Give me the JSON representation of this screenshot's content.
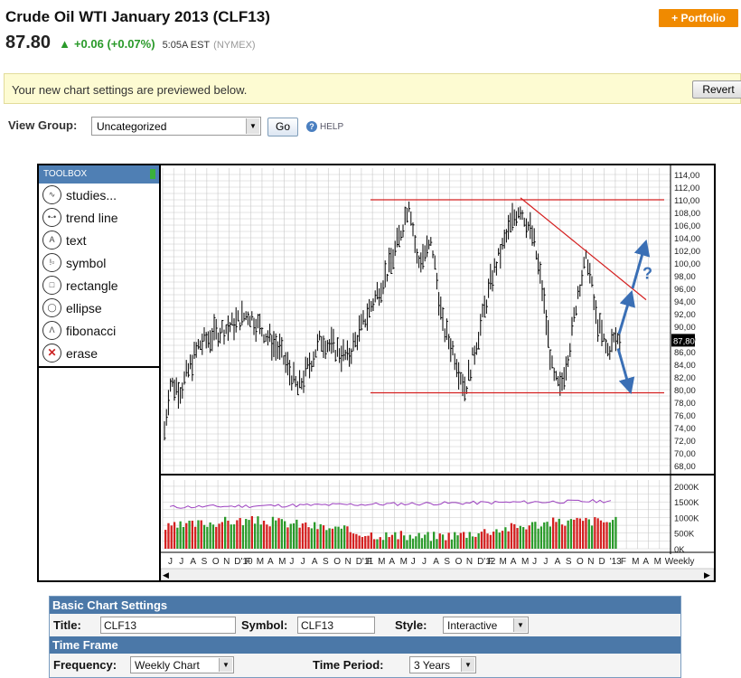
{
  "header": {
    "title": "Crude Oil WTI January 2013 (CLF13)",
    "portfolio_button": "+ Portfolio"
  },
  "quote": {
    "price": "87.80",
    "arrow_icon": "up-arrow-icon",
    "change": "+0.06 (+0.07%)",
    "time": "5:05A EST",
    "exchange": "(NYMEX)",
    "up_color": "#2a9a2a"
  },
  "notice": {
    "message": "Your new chart settings are previewed below.",
    "revert_label": "Revert"
  },
  "view_group": {
    "label": "View Group:",
    "selected": "Uncategorized",
    "go_label": "Go",
    "help_label": "HELP"
  },
  "toolbox": {
    "title": "TOOLBOX",
    "tools": [
      {
        "label": "studies...",
        "icon": "studies-icon"
      },
      {
        "label": "trend line",
        "icon": "trend-line-icon"
      },
      {
        "label": "text",
        "icon": "text-icon"
      },
      {
        "label": "symbol",
        "icon": "symbol-icon"
      },
      {
        "label": "rectangle",
        "icon": "rectangle-icon"
      },
      {
        "label": "ellipse",
        "icon": "ellipse-icon"
      },
      {
        "label": "fibonacci",
        "icon": "fibonacci-icon"
      },
      {
        "label": "erase",
        "icon": "erase-icon"
      }
    ]
  },
  "chart_data": {
    "type": "line",
    "symbol": "CLF13",
    "frequency": "Weekly",
    "price_ticks": [
      "114,00",
      "112,00",
      "110,00",
      "108,00",
      "106,00",
      "104,00",
      "102,00",
      "100,00",
      "98,00",
      "96,00",
      "94,00",
      "92,00",
      "90,00",
      "88,00",
      "86,00",
      "84,00",
      "82,00",
      "80,00",
      "78,00",
      "76,00",
      "74,00",
      "72,00",
      "70,00",
      "68,00"
    ],
    "ylim": [
      67,
      115
    ],
    "last_price_label": "87,80",
    "volume_ticks": [
      "2000K",
      "1500K",
      "1000K",
      "500K",
      "0K"
    ],
    "volume_ylim": [
      0,
      2200
    ],
    "x_labels": [
      "J",
      "J",
      "A",
      "S",
      "O",
      "N",
      "D'10",
      "F",
      "M",
      "A",
      "M",
      "J",
      "J",
      "A",
      "S",
      "O",
      "N",
      "D'11",
      "F",
      "M",
      "A",
      "M",
      "J",
      "J",
      "A",
      "S",
      "O",
      "N",
      "D'12",
      "F",
      "M",
      "A",
      "M",
      "J",
      "J",
      "A",
      "S",
      "O",
      "N",
      "D",
      "'13",
      "F",
      "M",
      "A",
      "M",
      "Weekly"
    ],
    "annotations": {
      "resistance_level": 110,
      "support_level": 79.5,
      "question_mark": "?",
      "line_color": "#d42020",
      "arrow_color": "#3a6fb5"
    },
    "colors": {
      "price_bars": "#000000",
      "volume_up": "#2a9a2a",
      "volume_down": "#d42020",
      "indicator": "#9b3fbf",
      "grid": "#c8c8c8"
    }
  },
  "settings": {
    "basic_header": "Basic Chart Settings",
    "title_label": "Title:",
    "title_value": "CLF13",
    "symbol_label": "Symbol:",
    "symbol_value": "CLF13",
    "style_label": "Style:",
    "style_value": "Interactive",
    "timeframe_header": "Time Frame",
    "frequency_label": "Frequency:",
    "frequency_value": "Weekly Chart",
    "period_label": "Time Period:",
    "period_value": "3 Years"
  }
}
